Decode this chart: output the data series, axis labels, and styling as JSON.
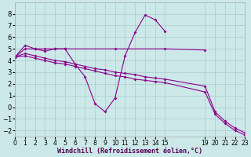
{
  "bg_color": "#cce8e8",
  "line_color": "#8b008b",
  "grid_color": "#aacccc",
  "xlabel": "Windchill (Refroidissement éolien,°C)",
  "xlim": [
    0,
    23
  ],
  "ylim": [
    -2.5,
    9
  ],
  "yticks": [
    -2,
    -1,
    0,
    1,
    2,
    3,
    4,
    5,
    6,
    7,
    8
  ],
  "xtick_positions": [
    0,
    1,
    2,
    3,
    4,
    5,
    6,
    7,
    8,
    9,
    10,
    11,
    12,
    13,
    14,
    15,
    19,
    20,
    21,
    22,
    23
  ],
  "xtick_labels": [
    "0",
    "1",
    "2",
    "3",
    "4",
    "5",
    "6",
    "7",
    "8",
    "9",
    "10",
    "11",
    "12",
    "13",
    "14",
    "15",
    "19",
    "20",
    "21",
    "22",
    "23"
  ],
  "lines": [
    {
      "x": [
        0,
        1,
        2,
        3,
        4,
        5,
        6,
        7,
        8,
        9,
        10,
        11,
        12,
        13,
        14,
        15
      ],
      "y": [
        4.3,
        5.3,
        5.0,
        4.8,
        5.0,
        5.0,
        3.7,
        2.6,
        0.3,
        -0.4,
        0.8,
        4.4,
        6.4,
        7.9,
        7.5,
        6.5
      ]
    },
    {
      "x": [
        0,
        1,
        2,
        3,
        4,
        5,
        10,
        15,
        19
      ],
      "y": [
        4.3,
        5.0,
        5.0,
        5.0,
        5.0,
        5.0,
        5.0,
        5.0,
        4.9
      ]
    },
    {
      "x": [
        0,
        1,
        2,
        3,
        4,
        5,
        6,
        7,
        8,
        9,
        10,
        11,
        12,
        13,
        14,
        15,
        19,
        20,
        21,
        22,
        23
      ],
      "y": [
        4.3,
        4.6,
        4.4,
        4.2,
        4.0,
        3.9,
        3.7,
        3.5,
        3.3,
        3.2,
        3.0,
        2.9,
        2.8,
        2.6,
        2.5,
        2.4,
        1.8,
        -0.4,
        -1.2,
        -1.8,
        -2.2
      ]
    },
    {
      "x": [
        0,
        1,
        2,
        3,
        4,
        5,
        6,
        7,
        8,
        9,
        10,
        11,
        12,
        13,
        14,
        15,
        19,
        20,
        21,
        22,
        23
      ],
      "y": [
        4.3,
        4.4,
        4.2,
        4.0,
        3.8,
        3.7,
        3.5,
        3.3,
        3.1,
        2.9,
        2.7,
        2.6,
        2.4,
        2.3,
        2.2,
        2.1,
        1.3,
        -0.6,
        -1.4,
        -2.0,
        -2.4
      ]
    }
  ]
}
